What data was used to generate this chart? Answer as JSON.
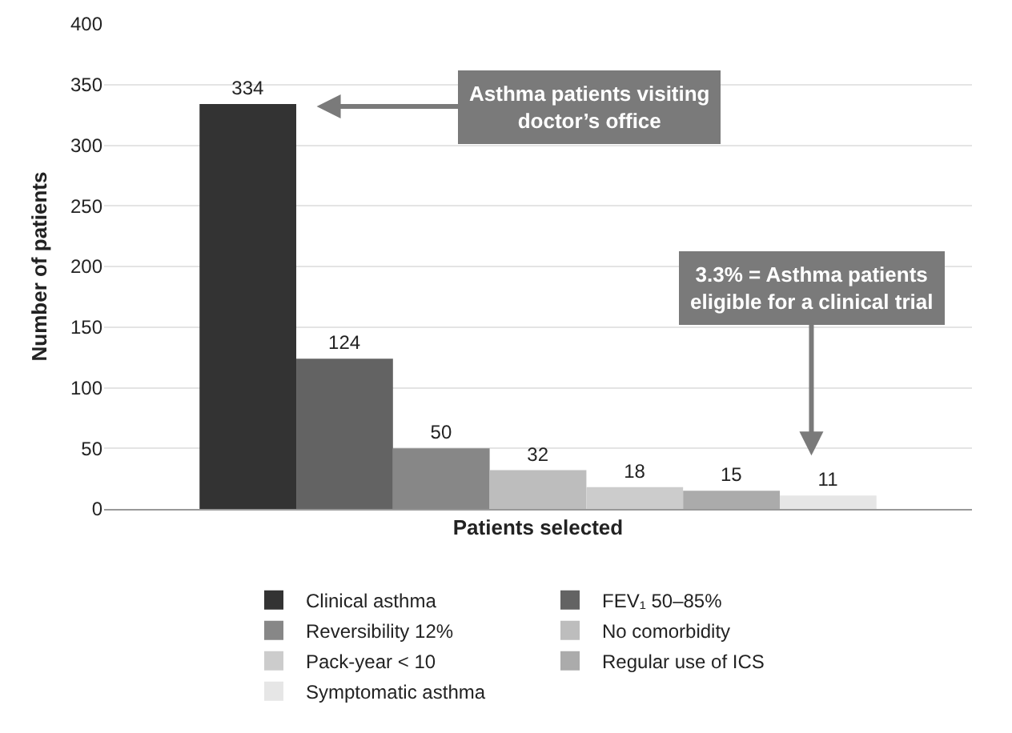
{
  "chart_data": {
    "type": "bar",
    "xlabel": "Patients selected",
    "ylabel": "Number of patients",
    "categories": [
      null
    ],
    "series": [
      {
        "name": "Clinical asthma",
        "color": "#333333",
        "values": [
          334
        ]
      },
      {
        "name": "FEV₁ 50–85%",
        "color": "#636363",
        "values": [
          124
        ]
      },
      {
        "name": "Reversibility 12%",
        "color": "#878787",
        "values": [
          50
        ]
      },
      {
        "name": "No comorbidity",
        "color": "#bdbdbd",
        "values": [
          32
        ]
      },
      {
        "name": "Pack-year < 10",
        "color": "#cccccc",
        "values": [
          18
        ]
      },
      {
        "name": "Regular use of ICS",
        "color": "#ababab",
        "values": [
          15
        ]
      },
      {
        "name": "Symptomatic asthma",
        "color": "#e6e6e6",
        "values": [
          11
        ]
      }
    ],
    "ylim": [
      0,
      400
    ],
    "yticks": [
      0,
      50,
      100,
      150,
      200,
      250,
      300,
      350,
      400
    ],
    "grid": "y",
    "legend": "bottom",
    "data_labels": true,
    "annotations": [
      "Asthma patients visiting doctor’s office",
      "3.3% = Asthma patients eligible for a clinical trial"
    ]
  }
}
